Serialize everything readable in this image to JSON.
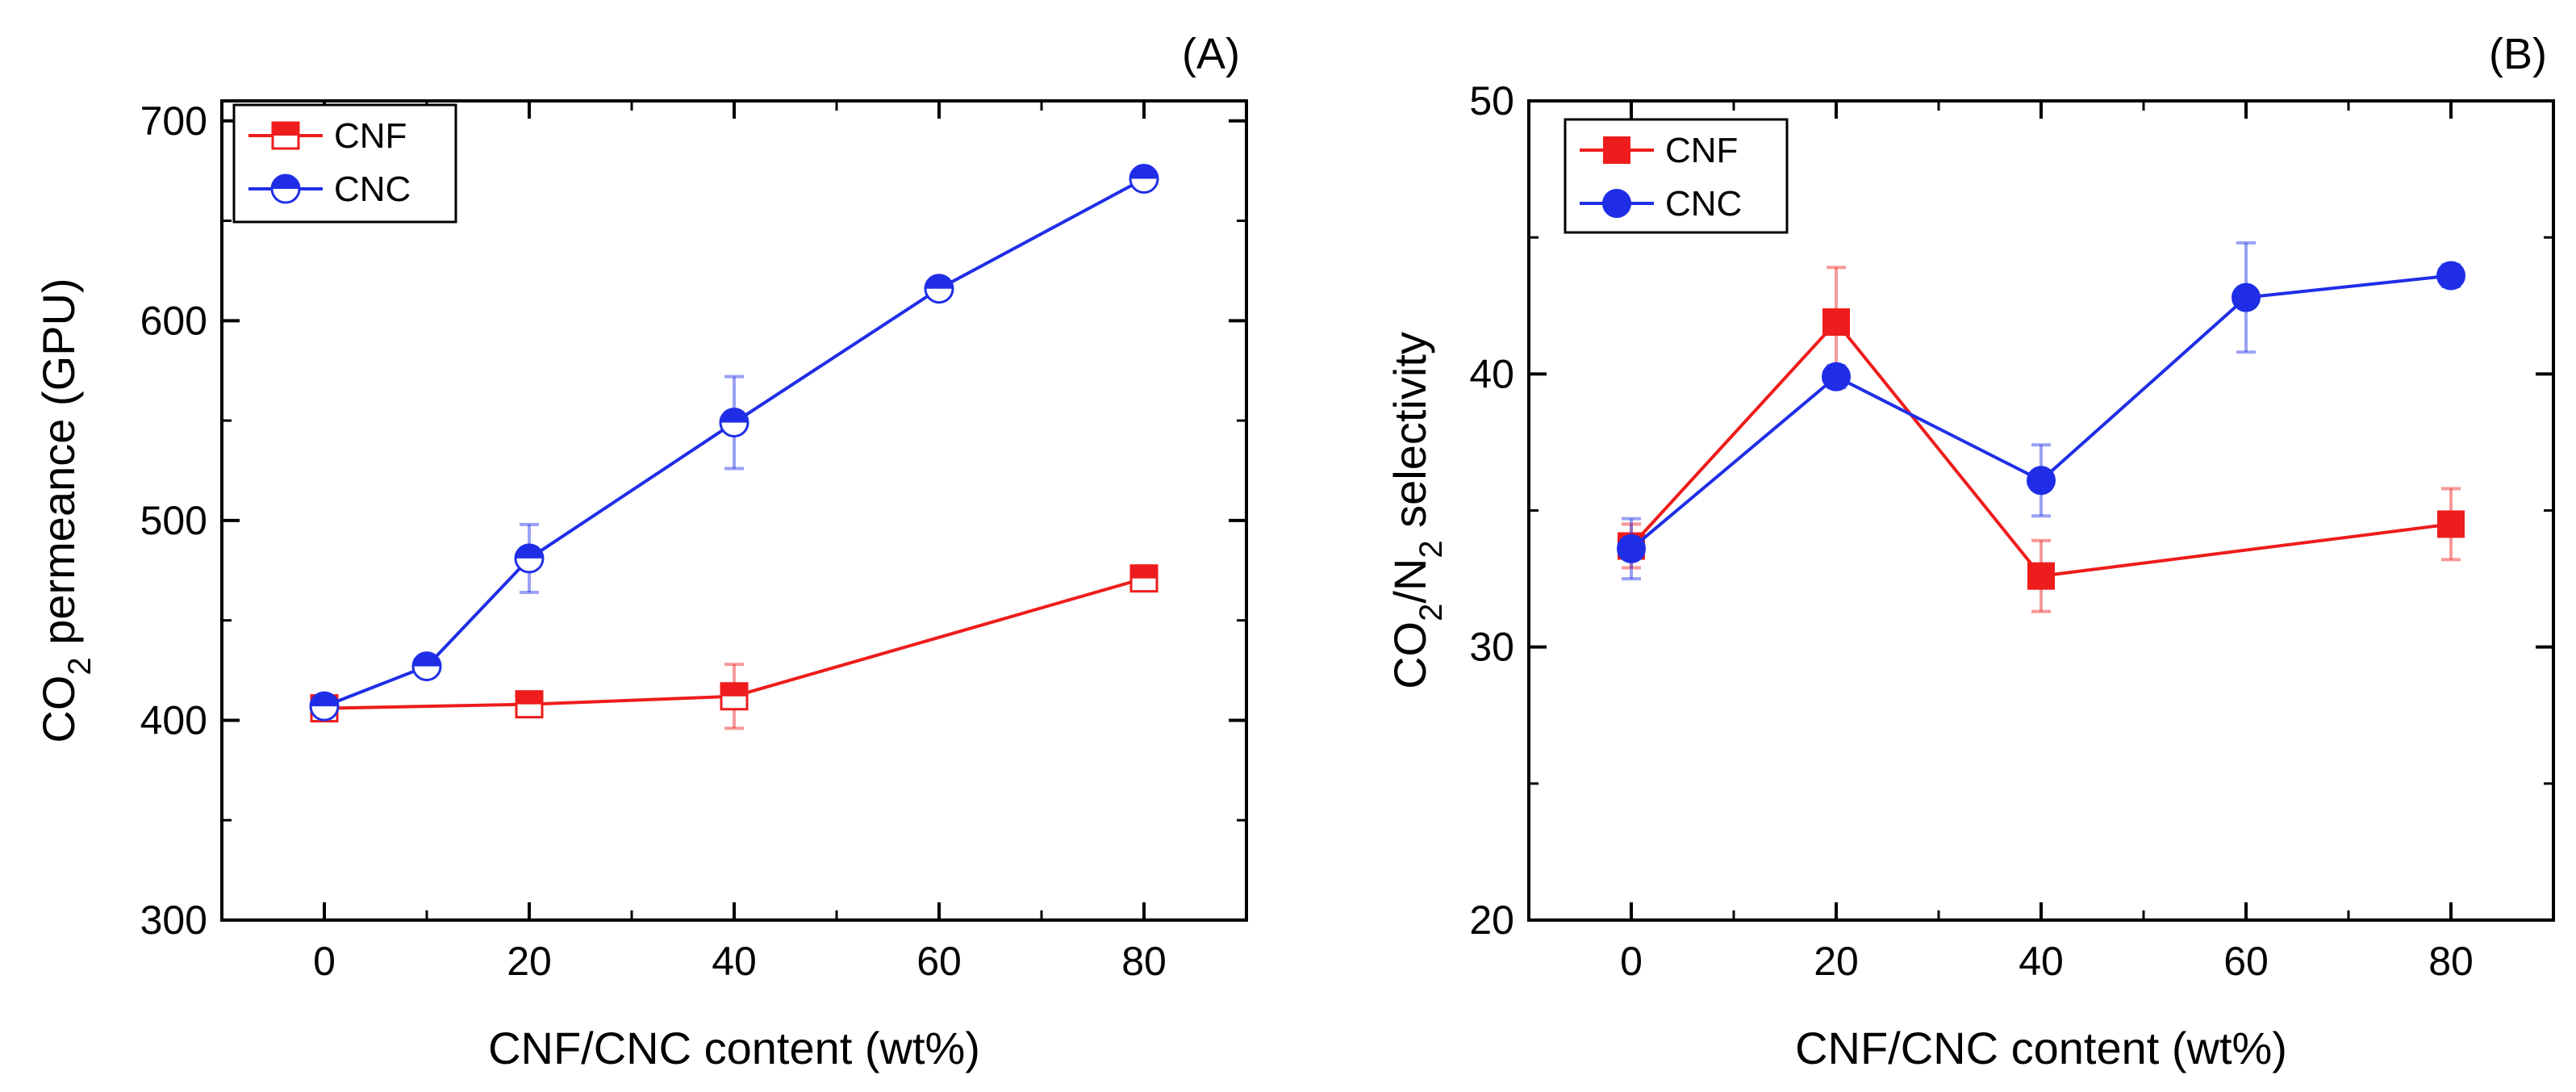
{
  "chart_data": [
    {
      "type": "line",
      "panel_label": "(A)",
      "ylabel": "CO₂ permeance (GPU)",
      "ylabel_parts": [
        "CO",
        "2",
        " permeance (GPU)"
      ],
      "xlabel": "CNF/CNC content (wt%)",
      "xlim": [
        -10,
        90
      ],
      "ylim": [
        300,
        710
      ],
      "xticks": [
        0,
        20,
        40,
        60,
        80
      ],
      "yticks": [
        300,
        400,
        500,
        600,
        700
      ],
      "legend_position": "top-left",
      "series": [
        {
          "name": "CNF",
          "color": "#ee1c1c",
          "marker": "half-square",
          "x": [
            0,
            20,
            40,
            80
          ],
          "y": [
            406,
            408,
            412,
            471
          ],
          "err": [
            4,
            5,
            16,
            6
          ]
        },
        {
          "name": "CNC",
          "color": "#1f2ee6",
          "marker": "half-circle",
          "x": [
            0,
            10,
            20,
            40,
            60,
            80
          ],
          "y": [
            407,
            427,
            481,
            549,
            616,
            671
          ],
          "err": [
            4,
            4,
            17,
            23,
            4,
            4
          ]
        }
      ]
    },
    {
      "type": "line",
      "panel_label": "(B)",
      "ylabel": "CO₂/N₂ selectivity",
      "ylabel_parts": [
        "CO",
        "2",
        "/N",
        "2",
        " selectivity"
      ],
      "xlabel": "CNF/CNC content (wt%)",
      "xlim": [
        -10,
        90
      ],
      "ylim": [
        20,
        50
      ],
      "xticks": [
        0,
        20,
        40,
        60,
        80
      ],
      "yticks": [
        20,
        30,
        40,
        50
      ],
      "legend_position": "top-left",
      "series": [
        {
          "name": "CNF",
          "color": "#ee1c1c",
          "marker": "square",
          "x": [
            0,
            20,
            40,
            80
          ],
          "y": [
            33.7,
            41.9,
            32.6,
            34.5
          ],
          "err": [
            0.8,
            2.0,
            1.3,
            1.3
          ]
        },
        {
          "name": "CNC",
          "color": "#1f2ee6",
          "marker": "circle",
          "x": [
            0,
            20,
            40,
            60,
            80
          ],
          "y": [
            33.6,
            39.9,
            36.1,
            42.8,
            43.6
          ],
          "err": [
            1.1,
            0.4,
            1.3,
            2.0,
            0.4
          ]
        }
      ]
    }
  ]
}
